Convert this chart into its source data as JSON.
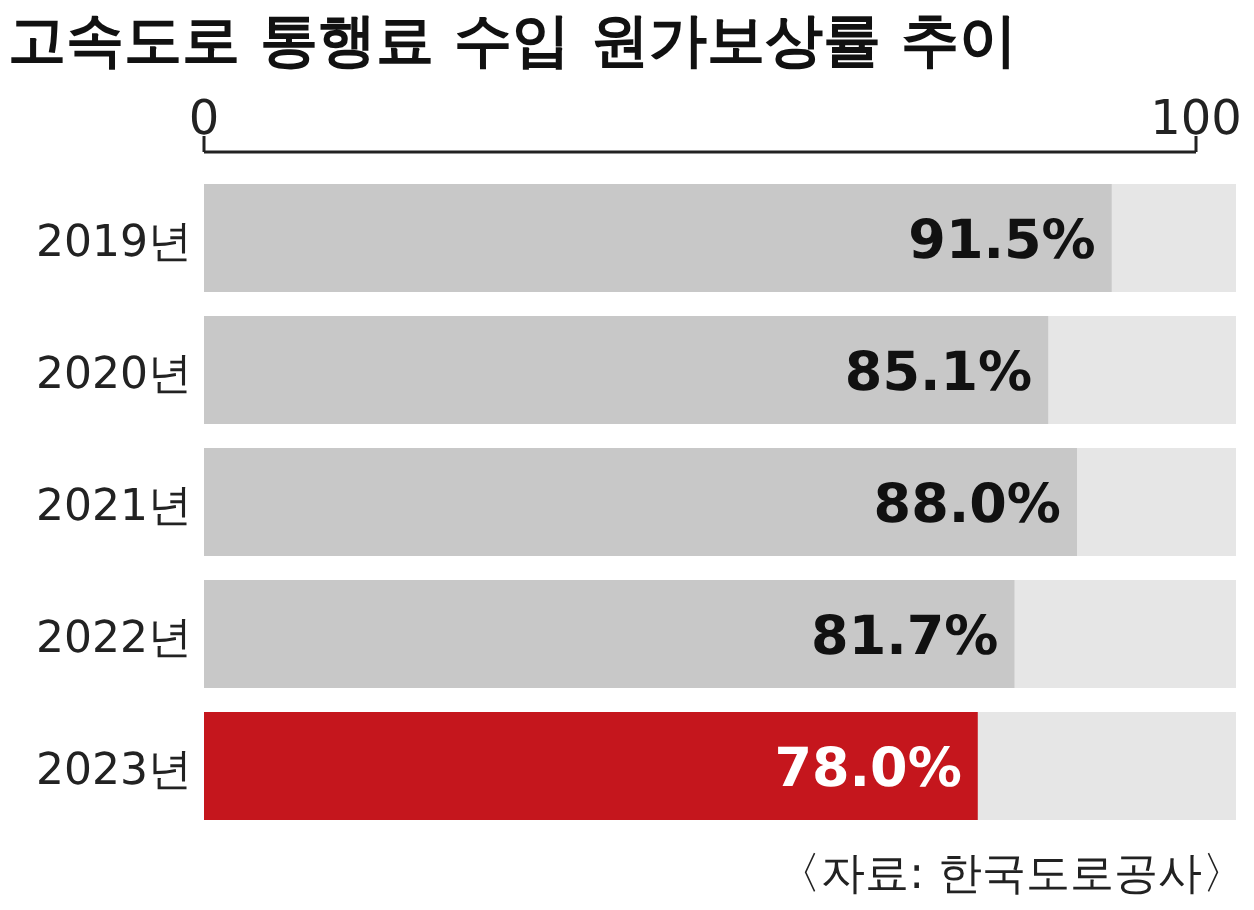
{
  "chart_data": {
    "type": "bar",
    "orientation": "horizontal",
    "title": "고속도로 통행료 수입 원가보상률 추이",
    "categories": [
      "2019년",
      "2020년",
      "2021년",
      "2022년",
      "2023년"
    ],
    "values": [
      91.5,
      85.1,
      88.0,
      81.7,
      78.0
    ],
    "colors": [
      "#c8c8c8",
      "#c8c8c8",
      "#c8c8c8",
      "#c8c8c8",
      "#c5161d"
    ],
    "value_labels": [
      "91.5%",
      "85.1%",
      "88.0%",
      "81.7%",
      "78.0%"
    ],
    "xlim": [
      0,
      100
    ],
    "xticks": [
      0,
      100
    ],
    "annotations": [
      "〈자료: 한국도로공사〉"
    ]
  }
}
